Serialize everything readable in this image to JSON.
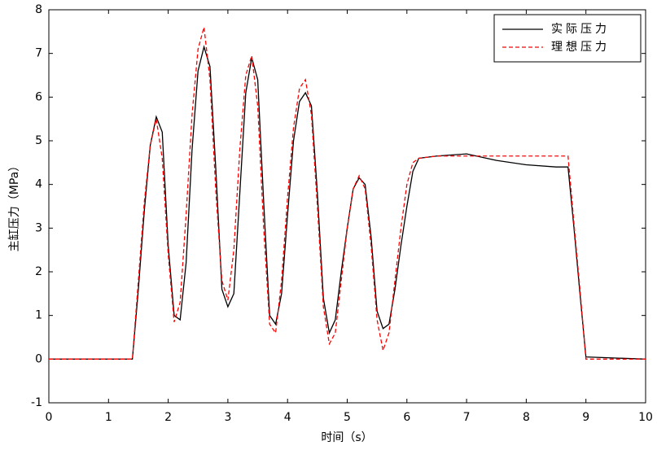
{
  "chart_data": {
    "type": "line",
    "x_label": "时间（s）",
    "y_label": "主缸压力（MPa）",
    "x": [
      0,
      1.4,
      1.5,
      1.6,
      1.7,
      1.8,
      1.9,
      2.0,
      2.1,
      2.2,
      2.3,
      2.4,
      2.5,
      2.6,
      2.7,
      2.8,
      2.9,
      3.0,
      3.1,
      3.2,
      3.3,
      3.4,
      3.5,
      3.6,
      3.7,
      3.8,
      3.9,
      4.0,
      4.1,
      4.2,
      4.3,
      4.4,
      4.5,
      4.6,
      4.7,
      4.8,
      4.9,
      5.0,
      5.1,
      5.2,
      5.3,
      5.4,
      5.5,
      5.6,
      5.7,
      5.8,
      5.9,
      6.0,
      6.1,
      6.2,
      6.5,
      7.0,
      7.5,
      8.0,
      8.5,
      8.7,
      8.8,
      8.9,
      9.0,
      10
    ],
    "series": [
      {
        "name": "实际压力",
        "color": "#000000",
        "style": "solid",
        "values": [
          0,
          0,
          1.6,
          3.4,
          4.9,
          5.55,
          5.2,
          2.6,
          1.0,
          0.9,
          2.2,
          4.8,
          6.6,
          7.15,
          6.7,
          4.3,
          1.6,
          1.2,
          1.5,
          3.8,
          6.1,
          6.9,
          6.4,
          3.6,
          1.0,
          0.8,
          1.5,
          3.3,
          5.0,
          5.9,
          6.1,
          5.8,
          3.8,
          1.4,
          0.6,
          0.9,
          2.0,
          3.0,
          3.9,
          4.15,
          4.0,
          2.8,
          1.1,
          0.7,
          0.8,
          1.6,
          2.6,
          3.5,
          4.3,
          4.6,
          4.65,
          4.7,
          4.55,
          4.45,
          4.4,
          4.4,
          3.0,
          1.5,
          0.05,
          0
        ]
      },
      {
        "name": "理想压力",
        "color": "#ff0000",
        "style": "dashed",
        "values": [
          0,
          0,
          1.8,
          3.6,
          4.9,
          5.5,
          4.6,
          2.4,
          0.85,
          1.3,
          3.3,
          5.6,
          7.1,
          7.6,
          6.4,
          3.8,
          1.8,
          1.35,
          2.5,
          4.8,
          6.5,
          6.95,
          5.8,
          3.0,
          0.8,
          0.6,
          1.8,
          3.7,
          5.3,
          6.2,
          6.4,
          5.6,
          3.5,
          1.2,
          0.35,
          0.6,
          1.8,
          3.0,
          3.9,
          4.2,
          3.9,
          2.6,
          0.9,
          0.2,
          0.6,
          1.8,
          3.0,
          4.0,
          4.5,
          4.6,
          4.65,
          4.65,
          4.65,
          4.65,
          4.65,
          4.65,
          3.1,
          1.6,
          0,
          0
        ]
      }
    ],
    "xlim": [
      0,
      10
    ],
    "xticks": [
      0,
      1,
      2,
      3,
      4,
      5,
      6,
      7,
      8,
      9,
      10
    ],
    "ylim": [
      -1,
      8
    ],
    "yticks": [
      -1,
      0,
      1,
      2,
      3,
      4,
      5,
      6,
      7,
      8
    ],
    "grid": false,
    "legend": "upper right"
  }
}
